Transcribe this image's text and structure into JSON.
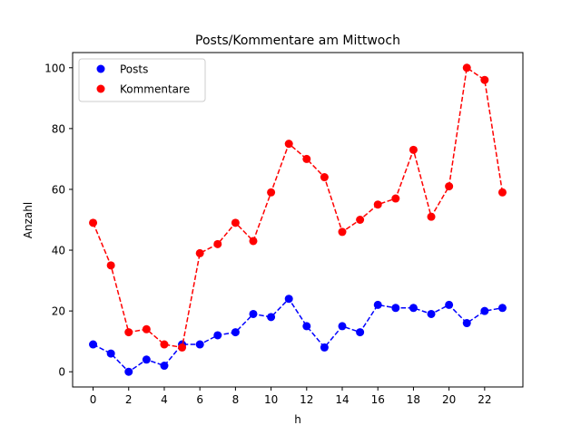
{
  "chart_data": {
    "type": "line",
    "title": "Posts/Kommentare am Mittwoch",
    "xlabel": "h",
    "ylabel": "Anzahl",
    "x": [
      0,
      1,
      2,
      3,
      4,
      5,
      6,
      7,
      8,
      9,
      10,
      11,
      12,
      13,
      14,
      15,
      16,
      17,
      18,
      19,
      20,
      21,
      22,
      23
    ],
    "xticks": [
      "0",
      "2",
      "4",
      "6",
      "8",
      "10",
      "12",
      "14",
      "16",
      "18",
      "20",
      "22"
    ],
    "yticks": [
      "0",
      "20",
      "40",
      "60",
      "80",
      "100"
    ],
    "xlim": [
      -1.15,
      24.15
    ],
    "ylim": [
      -5,
      105
    ],
    "grid": false,
    "legend": "top-left",
    "series": [
      {
        "name": "Posts",
        "color": "#0000ff",
        "values": [
          9,
          6,
          0,
          4,
          2,
          9,
          9,
          12,
          13,
          19,
          18,
          24,
          15,
          8,
          15,
          13,
          22,
          21,
          21,
          19,
          22,
          16,
          20,
          21
        ]
      },
      {
        "name": "Kommentare",
        "color": "#ff0000",
        "values": [
          49,
          35,
          13,
          14,
          9,
          8,
          39,
          42,
          49,
          43,
          59,
          75,
          70,
          64,
          46,
          50,
          55,
          57,
          73,
          51,
          61,
          100,
          96,
          59
        ]
      }
    ]
  }
}
